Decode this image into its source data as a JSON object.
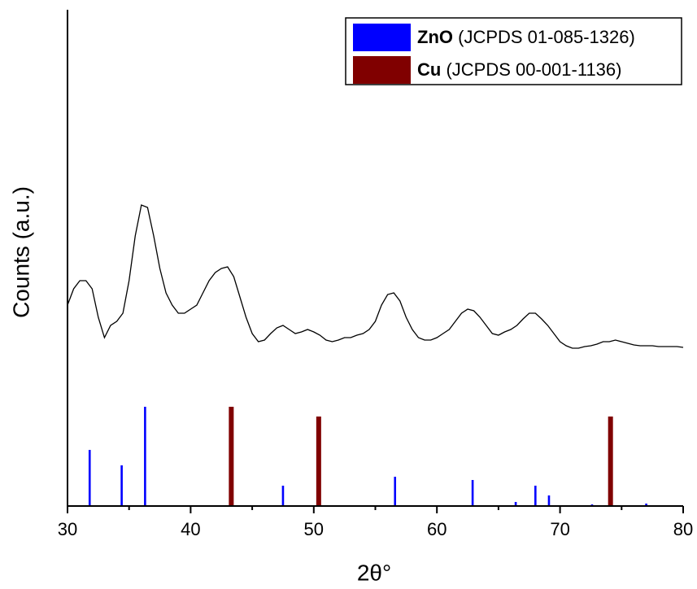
{
  "chart_data": {
    "type": "line",
    "xlabel": "2θ°",
    "ylabel": "Counts (a.u.)",
    "xlim": [
      30,
      80
    ],
    "xticks": [
      30,
      40,
      50,
      60,
      70,
      80
    ],
    "xminorticks": [
      35,
      45,
      55,
      65,
      75
    ],
    "ylim": [
      0,
      610
    ],
    "legend": "upper right",
    "series": [
      {
        "type": "line",
        "color": "#000000",
        "x": [
          30,
          30.5,
          31,
          31.5,
          32,
          32.5,
          33,
          33.5,
          34,
          34.5,
          35,
          35.5,
          36,
          36.5,
          37,
          37.5,
          38,
          38.5,
          39,
          39.5,
          40,
          40.5,
          41,
          41.5,
          42,
          42.5,
          43,
          43.5,
          44,
          44.5,
          45,
          45.5,
          46,
          46.5,
          47,
          47.5,
          48,
          48.5,
          49,
          49.5,
          50,
          50.5,
          51,
          51.5,
          52,
          52.5,
          53,
          53.5,
          54,
          54.5,
          55,
          55.5,
          56,
          56.5,
          57,
          57.5,
          58,
          58.5,
          59,
          59.5,
          60,
          60.5,
          61,
          61.5,
          62,
          62.5,
          63,
          63.5,
          64,
          64.5,
          65,
          65.5,
          66,
          66.5,
          67,
          67.5,
          68,
          68.5,
          69,
          69.5,
          70,
          70.5,
          71,
          71.5,
          72,
          72.5,
          73,
          73.5,
          74,
          74.5,
          75,
          75.5,
          76,
          76.5,
          77,
          77.5,
          78,
          78.5,
          79,
          79.5,
          80
        ],
        "values": [
          247,
          267,
          277,
          277,
          267,
          232,
          207,
          222,
          227,
          237,
          277,
          332,
          370,
          367,
          332,
          292,
          262,
          247,
          237,
          237,
          242,
          247,
          262,
          277,
          287,
          292,
          294,
          282,
          257,
          232,
          212,
          202,
          204,
          212,
          219,
          222,
          217,
          212,
          214,
          217,
          214,
          210,
          204,
          202,
          204,
          207,
          207,
          210,
          212,
          217,
          227,
          247,
          260,
          262,
          252,
          232,
          217,
          207,
          204,
          204,
          207,
          212,
          217,
          227,
          237,
          242,
          240,
          232,
          222,
          212,
          210,
          214,
          217,
          222,
          230,
          237,
          237,
          230,
          222,
          212,
          202,
          197,
          194,
          194,
          196,
          197,
          199,
          202,
          202,
          204,
          202,
          200,
          198,
          197,
          197,
          197,
          196,
          196,
          196,
          196,
          195
        ]
      },
      {
        "type": "stick",
        "name": "ZnO",
        "source": "(JCPDS 01-085-1326)",
        "color": "#0000ff",
        "x": [
          31.8,
          34.4,
          36.3,
          47.5,
          56.6,
          62.9,
          66.4,
          68.0,
          69.1,
          72.6,
          77.0
        ],
        "values": [
          69,
          50,
          122,
          25,
          36,
          32,
          5,
          25,
          13,
          2,
          3
        ]
      },
      {
        "type": "stick",
        "name": "Cu",
        "source": "(JCPDS 00-001-1136)",
        "color": "#800000",
        "x": [
          43.3,
          50.4,
          74.1
        ],
        "values": [
          122,
          110,
          110
        ]
      }
    ]
  }
}
